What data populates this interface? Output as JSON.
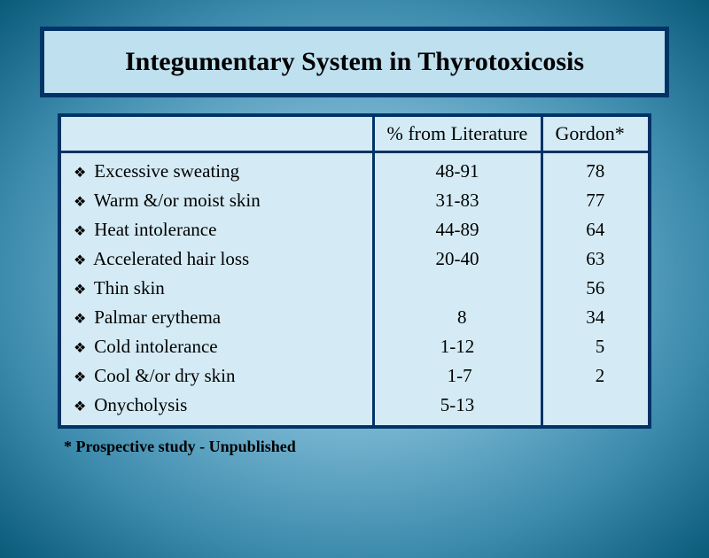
{
  "title": "Integumentary System in Thyrotoxicosis",
  "columns": {
    "symptom": "",
    "literature": "% from Literature",
    "gordon": "Gordon*"
  },
  "rows": [
    {
      "symptom": "Excessive sweating",
      "literature": "48-91",
      "gordon": "78"
    },
    {
      "symptom": "Warm &/or moist skin",
      "literature": "31-83",
      "gordon": "77"
    },
    {
      "symptom": "Heat intolerance",
      "literature": "44-89",
      "gordon": "64"
    },
    {
      "symptom": "Accelerated hair loss",
      "literature": "20-40",
      "gordon": "63"
    },
    {
      "symptom": "Thin skin",
      "literature": "",
      "gordon": "56"
    },
    {
      "symptom": "Palmar erythema",
      "literature": "  8",
      "gordon": "34"
    },
    {
      "symptom": "Cold intolerance",
      "literature": "1-12",
      "gordon": "  5"
    },
    {
      "symptom": "Cool &/or dry skin",
      "literature": " 1-7",
      "gordon": "  2"
    },
    {
      "symptom": "Onycholysis",
      "literature": "5-13",
      "gordon": ""
    }
  ],
  "footnote": "* Prospective study - Unpublished",
  "bullet_glyph": "❖",
  "colors": {
    "border": "#003366",
    "title_bg": "#bfe0ef",
    "table_bg": "#d4ebf5"
  }
}
